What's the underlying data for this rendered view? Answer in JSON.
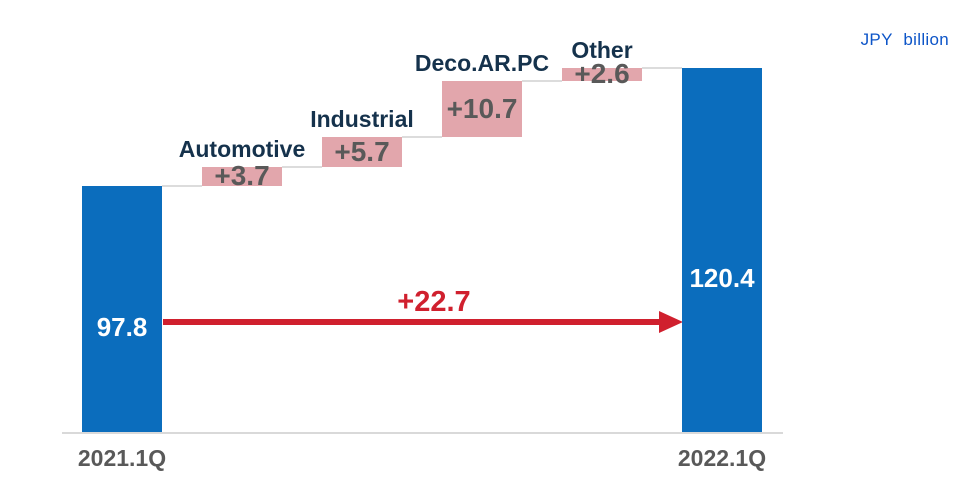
{
  "unit_label": "JPY  billion",
  "colors": {
    "total_bar": "#0b6dbd",
    "delta_bar": "#e2a6ac",
    "arrow": "#d0202e",
    "category_text": "#15324c",
    "delta_text": "#595959",
    "axis_text": "#595959",
    "total_value_text": "#ffffff",
    "connector": "#dcdcdc",
    "baseline": "#d9d9d9",
    "unit_text": "#0d55c8"
  },
  "chart_data": {
    "type": "bar",
    "subtype": "waterfall",
    "title": "",
    "unit": "JPY  billion",
    "categories": [
      "2021.1Q",
      "Automotive",
      "Industrial",
      "Deco.AR.PC",
      "Other",
      "2022.1Q"
    ],
    "steps": [
      {
        "label": "2021.1Q",
        "kind": "total",
        "value": 97.8,
        "display": "97.8"
      },
      {
        "label": "Automotive",
        "kind": "delta",
        "value": 3.7,
        "display": "+3.7"
      },
      {
        "label": "Industrial",
        "kind": "delta",
        "value": 5.7,
        "display": "+5.7"
      },
      {
        "label": "Deco.AR.PC",
        "kind": "delta",
        "value": 10.7,
        "display": "+10.7"
      },
      {
        "label": "Other",
        "kind": "delta",
        "value": 2.6,
        "display": "+2.6"
      },
      {
        "label": "2022.1Q",
        "kind": "total",
        "value": 120.4,
        "display": "120.4"
      }
    ],
    "total_change": {
      "value": 22.7,
      "display": "+22.7"
    },
    "axis": {
      "x_axis_labels": [
        "2021.1Q",
        "2022.1Q"
      ],
      "y_range_visible": [
        50.6,
        133
      ],
      "gridlines": false,
      "legend": "none"
    }
  }
}
